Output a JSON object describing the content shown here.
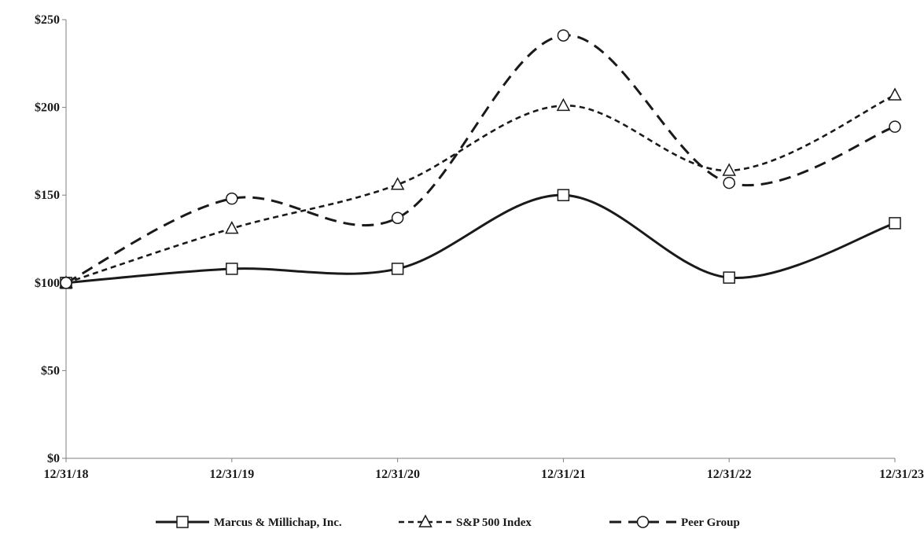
{
  "chart_data": {
    "type": "line",
    "title": "",
    "xlabel": "",
    "ylabel": "",
    "categories": [
      "12/31/18",
      "12/31/19",
      "12/31/20",
      "12/31/21",
      "12/31/22",
      "12/31/23"
    ],
    "ylim": [
      0,
      250
    ],
    "y_ticks": [
      0,
      50,
      100,
      150,
      200,
      250
    ],
    "y_tick_labels": [
      "$0",
      "$50",
      "$100",
      "$150",
      "$200",
      "$250"
    ],
    "grid": false,
    "smooth": true,
    "legend_position": "bottom",
    "series": [
      {
        "name": "Marcus & Millichap, Inc.",
        "values": [
          100,
          108,
          108,
          150,
          103,
          134
        ],
        "marker": "square",
        "dash": "solid"
      },
      {
        "name": "S&P 500 Index",
        "values": [
          100,
          131,
          156,
          201,
          164,
          207
        ],
        "marker": "triangle",
        "dash": "short-dash"
      },
      {
        "name": "Peer Group",
        "values": [
          100,
          148,
          137,
          241,
          157,
          189
        ],
        "marker": "circle",
        "dash": "long-dash"
      }
    ]
  }
}
